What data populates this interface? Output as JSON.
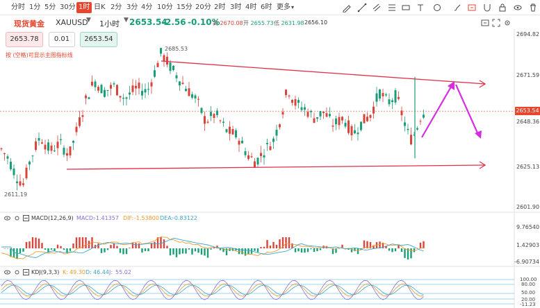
{
  "toolbar": {
    "timeframes": [
      {
        "label": "分时",
        "active": false
      },
      {
        "label": "1分",
        "active": false
      },
      {
        "label": "5分",
        "active": false
      },
      {
        "label": "30分",
        "active": false
      },
      {
        "label": "1时",
        "active": true
      },
      {
        "label": "日K",
        "active": false
      },
      {
        "label": "2分",
        "active": false
      },
      {
        "label": "3分",
        "active": false
      },
      {
        "label": "4分",
        "active": false
      },
      {
        "label": "10分",
        "active": false
      },
      {
        "label": "15分",
        "active": false
      },
      {
        "label": "20分",
        "active": false
      },
      {
        "label": "2时",
        "active": false
      },
      {
        "label": "3时",
        "active": false
      },
      {
        "label": "4时",
        "active": false
      },
      {
        "label": "6时",
        "active": false
      },
      {
        "label": "更多",
        "active": false
      }
    ],
    "right_icons": [
      "pencil-icon",
      "trendline-icon",
      "channel-icon",
      "fibonacci-icon",
      "measure-icon",
      "text-tool-icon",
      "shape-icon",
      "arrow-tool-icon",
      "brush-icon",
      "eraser-icon",
      "magnet-icon",
      "lock-icon",
      "eye-icon",
      "delete-icon"
    ]
  },
  "symbol": {
    "name": "现货黄金",
    "code": "XAUUSD",
    "period": "1小时",
    "last": "2653.54",
    "change": "-2.56",
    "change_pct": "-0.10%",
    "high_label": "高",
    "high": "2670.08",
    "open_label": "开",
    "open": "2655.73",
    "low_label": "低",
    "low": "2631.98",
    "close": "2656.10"
  },
  "order": {
    "sell_price": "2653.78",
    "quantity": "0.01",
    "buy_price": "2653.54"
  },
  "hint_text": "按 (空格)可显示主图指标线",
  "price_axis": {
    "labels": [
      "2694.82",
      "2671.59",
      "2648.36",
      "2625.13",
      "2601.90"
    ],
    "current": "2653.54"
  },
  "annotations": {
    "high_marker": "2685.53",
    "low_marker": "2611.19"
  },
  "macd": {
    "title": "MACD(12,26,9)",
    "macd_label": "MACD:",
    "macd_value": "-1.41357",
    "dif_label": "DIF:",
    "dif_value": "-1.53800",
    "dea_label": "DEA:",
    "dea_value": "-0.83122",
    "axis_labels": [
      "9.76540",
      "1.42903",
      "-6.90734"
    ]
  },
  "kdj": {
    "title": "KDJ(9,3,3)",
    "k_label": "K:",
    "k_value": "49.30",
    "d_label": "D:",
    "d_value": "46.44",
    "j_label": "J:",
    "j_value": "55.02",
    "axis_labels": [
      "100.00",
      "80.00",
      "50.00",
      "20.00",
      "-11.23"
    ]
  },
  "colors": {
    "up": "#d9453a",
    "down": "#1a9e77",
    "accent": "#e8452c",
    "trendline": "#e0304a",
    "forecast_arrow": "#d42ee0"
  }
}
